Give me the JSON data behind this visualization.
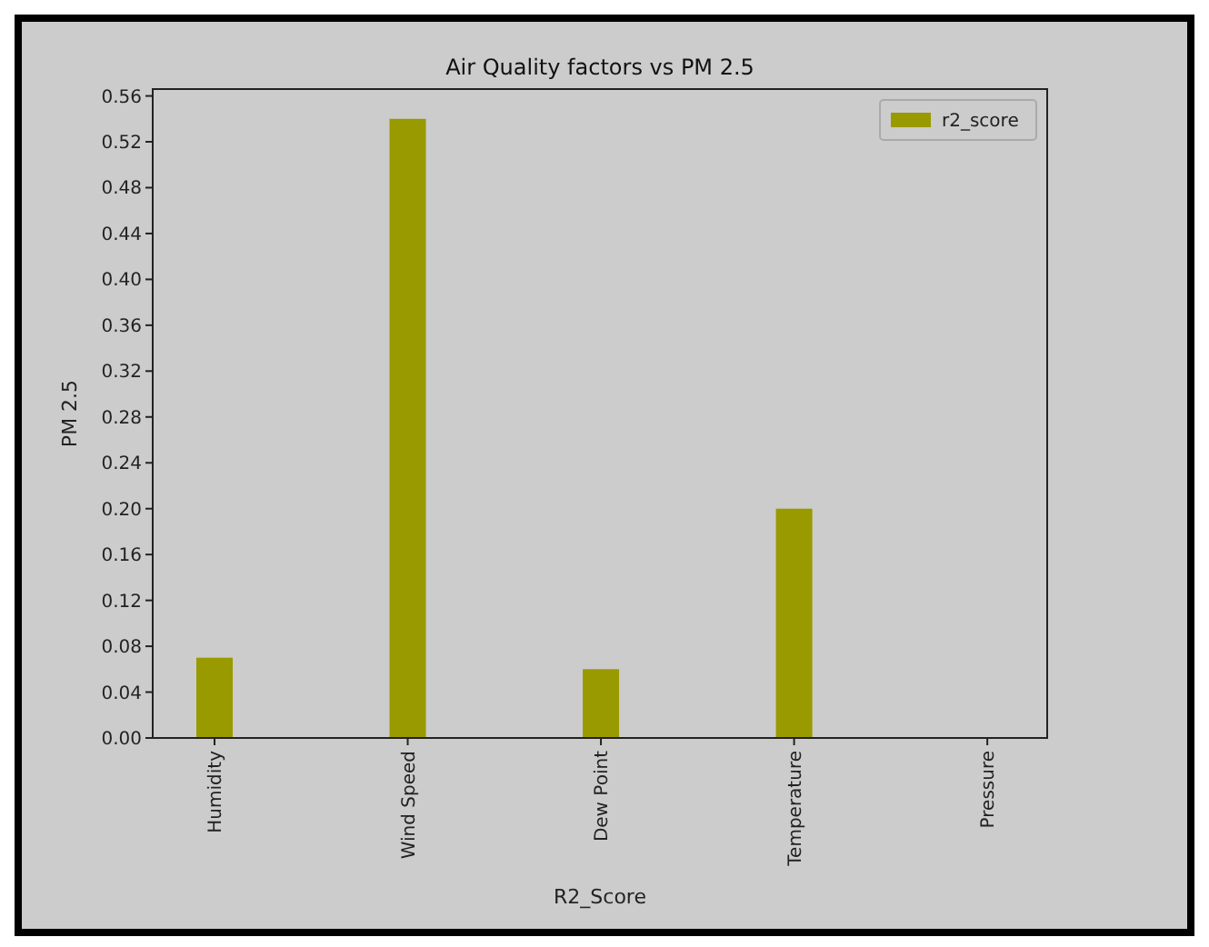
{
  "chart_data": {
    "type": "bar",
    "title": "Air Quality factors vs PM 2.5",
    "xlabel": "R2_Score",
    "ylabel": "PM 2.5",
    "categories": [
      "Humidity",
      "Wind Speed",
      "Dew Point",
      "Temperature",
      "Pressure"
    ],
    "series": [
      {
        "name": "r2_score",
        "color": "#999900",
        "values": [
          0.07,
          0.54,
          0.06,
          0.2,
          0
        ]
      }
    ],
    "ylim": [
      0,
      0.566
    ],
    "yticks": [
      {
        "value": 0,
        "label": "0.00"
      },
      {
        "value": 0.04,
        "label": "0.04"
      },
      {
        "value": 0.08,
        "label": "0.08"
      },
      {
        "value": 0.12,
        "label": "0.12"
      },
      {
        "value": 0.16,
        "label": "0.16"
      },
      {
        "value": 0.2,
        "label": "0.20"
      },
      {
        "value": 0.24,
        "label": "0.24"
      },
      {
        "value": 0.28,
        "label": "0.28"
      },
      {
        "value": 0.32,
        "label": "0.32"
      },
      {
        "value": 0.36,
        "label": "0.36"
      },
      {
        "value": 0.4,
        "label": "0.40"
      },
      {
        "value": 0.44,
        "label": "0.44"
      },
      {
        "value": 0.48,
        "label": "0.48"
      },
      {
        "value": 0.52,
        "label": "0.52"
      },
      {
        "value": 0.56,
        "label": "0.56"
      }
    ],
    "legend": "top right"
  }
}
